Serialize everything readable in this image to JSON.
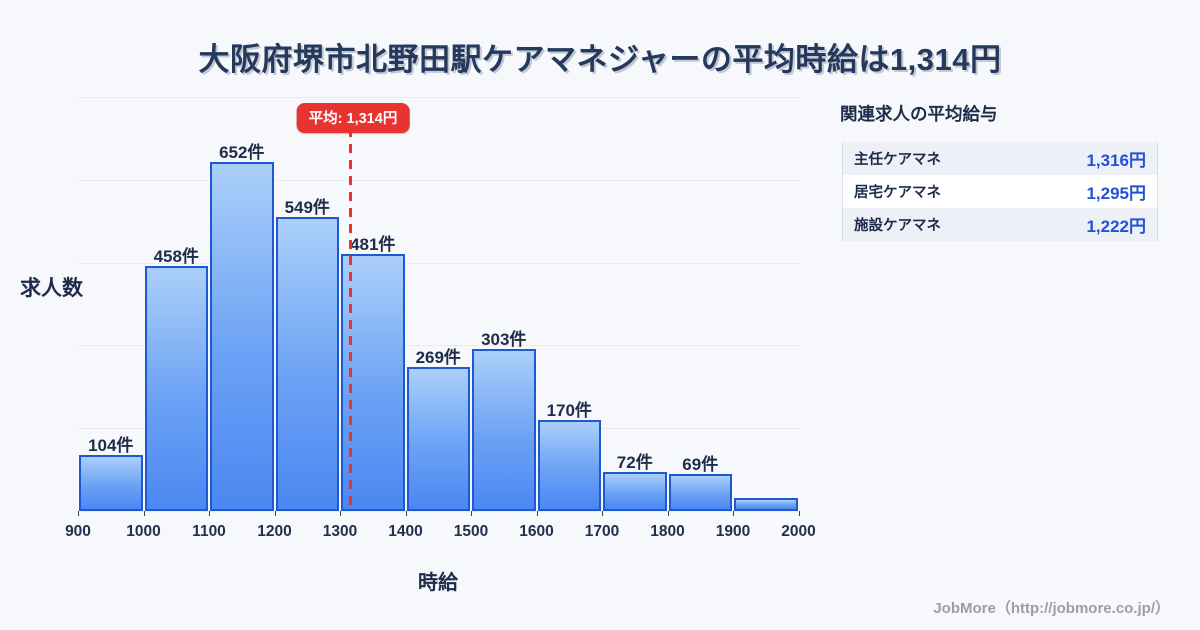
{
  "title": "大阪府堺市北野田駅ケアマネジャーの平均時給は1,314円",
  "chart_data": {
    "type": "bar",
    "title": "大阪府堺市北野田駅ケアマネジャーの平均時給は1,314円",
    "xlabel": "時給",
    "ylabel": "求人数",
    "x_tick_labels": [
      "900",
      "1000",
      "1100",
      "1200",
      "1300",
      "1400",
      "1500",
      "1600",
      "1700",
      "1800",
      "1900",
      "2000"
    ],
    "categories": [
      "900-1000",
      "1000-1100",
      "1100-1200",
      "1200-1300",
      "1300-1400",
      "1400-1500",
      "1500-1600",
      "1600-1700",
      "1700-1800",
      "1800-1900",
      "1900-2000"
    ],
    "values": [
      104,
      458,
      652,
      549,
      481,
      269,
      303,
      170,
      72,
      69,
      24
    ],
    "bar_labels": [
      "104件",
      "458件",
      "652件",
      "549件",
      "481件",
      "269件",
      "303件",
      "170件",
      "72件",
      "69件",
      ""
    ],
    "average": {
      "value": 1314,
      "badge_label": "平均: 1,314円"
    },
    "ylim": [
      0,
      750
    ],
    "grid": true,
    "colors": {
      "bar_fill_top": "#abcff9",
      "bar_fill_bottom": "#4c87f2",
      "bar_border": "#1d59d1",
      "average_line": "#e83431",
      "text_navy": "#1e2c49",
      "background": "#f7f8fb"
    }
  },
  "side_panel": {
    "heading": "関連求人の平均給与",
    "rows": [
      {
        "label": "主任ケアマネ",
        "value": "1,316円"
      },
      {
        "label": "居宅ケアマネ",
        "value": "1,295円"
      },
      {
        "label": "施設ケアマネ",
        "value": "1,222円"
      }
    ]
  },
  "footer": {
    "credit": "JobMore（http://jobmore.co.jp/）"
  }
}
